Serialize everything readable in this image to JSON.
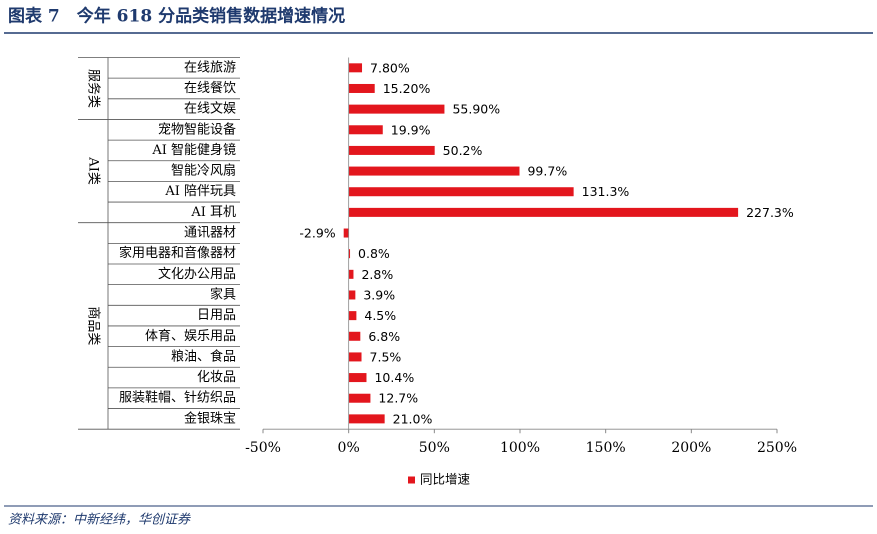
{
  "header": {
    "title": "图表 7　今年 618 分品类销售数据增速情况"
  },
  "chart_data": {
    "type": "bar",
    "orientation": "horizontal",
    "groups": [
      {
        "name": "服务类",
        "categories": [
          "在线旅游",
          "在线餐饮",
          "在线文娱"
        ]
      },
      {
        "name": "AI类",
        "categories": [
          "宠物智能设备",
          "AI 智能健身镜",
          "智能冷风扇",
          "AI 陪伴玩具",
          "AI 耳机"
        ]
      },
      {
        "name": "商品类",
        "categories": [
          "通讯器材",
          "家用电器和音像器材",
          "文化办公用品",
          "家具",
          "日用品",
          "体育、娱乐用品",
          "粮油、食品",
          "化妆品",
          "服装鞋帽、针纺织品",
          "金银珠宝"
        ]
      }
    ],
    "series": [
      {
        "name": "同比增速",
        "color": "#e3161d",
        "values": [
          7.8,
          15.2,
          55.9,
          19.9,
          50.2,
          99.7,
          131.3,
          227.3,
          -2.9,
          0.8,
          2.8,
          3.9,
          4.5,
          6.8,
          7.5,
          10.4,
          12.7,
          21.0
        ],
        "value_labels": [
          "7.80%",
          "15.20%",
          "55.90%",
          "19.9%",
          "50.2%",
          "99.7%",
          "131.3%",
          "227.3%",
          "-2.9%",
          "0.8%",
          "2.8%",
          "3.9%",
          "4.5%",
          "6.8%",
          "7.5%",
          "10.4%",
          "12.7%",
          "21.0%"
        ]
      }
    ],
    "xlim": [
      -50,
      250
    ],
    "xticks": [
      {
        "value": -50,
        "label": "-50%"
      },
      {
        "value": 0,
        "label": "0%"
      },
      {
        "value": 50,
        "label": "50%"
      },
      {
        "value": 100,
        "label": "100%"
      },
      {
        "value": 150,
        "label": "150%"
      },
      {
        "value": 200,
        "label": "200%"
      },
      {
        "value": 250,
        "label": "250%"
      }
    ],
    "legend": "bottom"
  },
  "footer": {
    "source": "资料来源：中新经纬，华创证券"
  }
}
